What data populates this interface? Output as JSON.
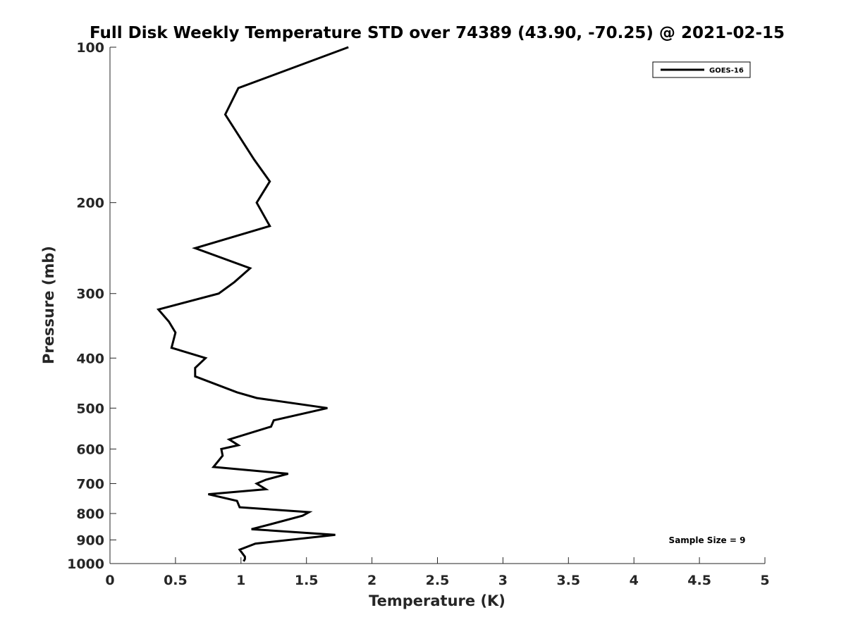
{
  "chart_data": {
    "type": "line",
    "title": "Full Disk Weekly Temperature STD over 74389 (43.90, -70.25) @ 2021-02-15",
    "xlabel": "Temperature (K)",
    "ylabel": "Pressure (mb)",
    "xlim": [
      0,
      5
    ],
    "ylim": [
      100,
      1000
    ],
    "y_scale": "log",
    "y_reversed": true,
    "x_ticks": [
      "0",
      "0.5",
      "1",
      "1.5",
      "2",
      "2.5",
      "3",
      "3.5",
      "4",
      "4.5",
      "5"
    ],
    "y_ticks": [
      "100",
      "200",
      "300",
      "400",
      "500",
      "600",
      "700",
      "800",
      "900",
      "1000"
    ],
    "grid": false,
    "legend": {
      "placement": "top-right",
      "entries": [
        "GOES-16"
      ]
    },
    "annotation": "Sample Size = 9",
    "series": [
      {
        "name": "GOES-16",
        "color": "#000000",
        "points": [
          [
            1.82,
            100
          ],
          [
            0.98,
            120
          ],
          [
            0.88,
            135
          ],
          [
            1.1,
            165
          ],
          [
            1.22,
            182
          ],
          [
            1.12,
            200
          ],
          [
            1.22,
            222
          ],
          [
            0.65,
            245
          ],
          [
            1.07,
            268
          ],
          [
            0.95,
            285
          ],
          [
            0.83,
            300
          ],
          [
            0.37,
            322
          ],
          [
            0.45,
            340
          ],
          [
            0.5,
            357
          ],
          [
            0.47,
            382
          ],
          [
            0.73,
            400
          ],
          [
            0.65,
            418
          ],
          [
            0.65,
            434
          ],
          [
            0.97,
            466
          ],
          [
            1.12,
            478
          ],
          [
            1.66,
            500
          ],
          [
            1.25,
            528
          ],
          [
            1.23,
            543
          ],
          [
            0.91,
            575
          ],
          [
            0.98,
            590
          ],
          [
            0.85,
            600
          ],
          [
            0.86,
            618
          ],
          [
            0.79,
            650
          ],
          [
            1.36,
            670
          ],
          [
            1.19,
            688
          ],
          [
            1.12,
            700
          ],
          [
            1.19,
            718
          ],
          [
            0.75,
            734
          ],
          [
            0.97,
            756
          ],
          [
            0.99,
            778
          ],
          [
            1.52,
            795
          ],
          [
            1.47,
            808
          ],
          [
            1.22,
            840
          ],
          [
            1.08,
            858
          ],
          [
            1.72,
            880
          ],
          [
            1.11,
            915
          ],
          [
            0.99,
            940
          ],
          [
            1.03,
            970
          ],
          [
            1.03,
            980
          ],
          [
            1.02,
            990
          ]
        ]
      }
    ]
  }
}
